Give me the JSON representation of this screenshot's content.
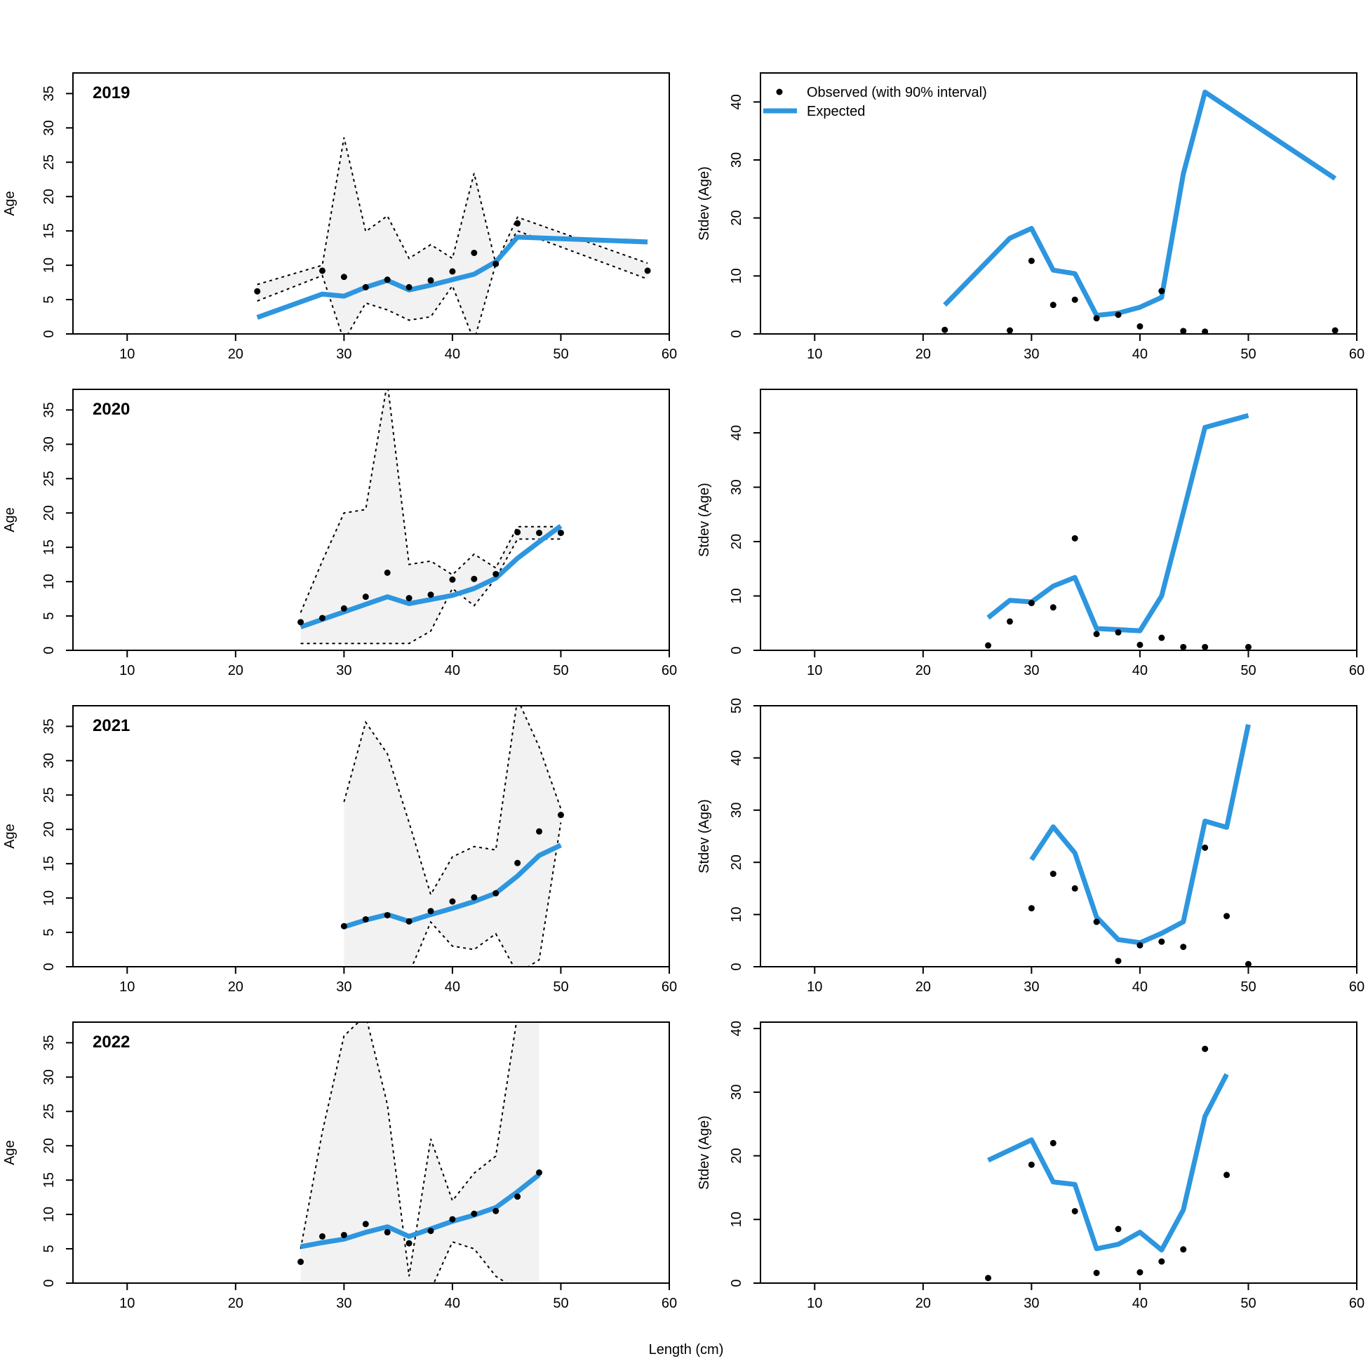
{
  "figure": {
    "xlabel": "Length (cm)",
    "legend": {
      "placement": "top-left",
      "observed_label": "Observed (with 90% interval)",
      "expected_label": "Expected"
    },
    "colors": {
      "expected": "#2D96DF",
      "observed": "#000000",
      "interval_fill": "#F2F2F2",
      "interval_line": "#000000"
    }
  },
  "chart_data": [
    {
      "type": "line",
      "panel": "mean",
      "year": "2019",
      "ylabel": "Age",
      "xlim": [
        5,
        60
      ],
      "ylim": [
        0,
        38
      ],
      "xticks": [
        10,
        20,
        30,
        40,
        50,
        60
      ],
      "yticks": [
        0,
        5,
        10,
        15,
        20,
        25,
        30,
        35
      ],
      "expected": {
        "x": [
          22,
          28,
          30,
          32,
          34,
          36,
          38,
          40,
          42,
          44,
          46,
          58
        ],
        "y": [
          2.4,
          5.8,
          5.5,
          6.8,
          7.8,
          6.4,
          7.1,
          7.9,
          8.7,
          10.5,
          14.1,
          13.4
        ]
      },
      "observed": {
        "x": [
          22,
          28,
          30,
          32,
          34,
          36,
          38,
          40,
          42,
          44,
          46,
          58
        ],
        "y": [
          6.2,
          9.2,
          8.3,
          6.8,
          7.9,
          6.8,
          7.8,
          9.1,
          11.8,
          10.2,
          16.1,
          9.2
        ]
      },
      "interval": {
        "x": [
          22,
          28,
          30,
          32,
          34,
          36,
          38,
          40,
          42,
          44,
          46,
          58
        ],
        "lower": [
          4.8,
          8.5,
          -12,
          4.5,
          3.5,
          2.0,
          2.5,
          7.0,
          -2.0,
          10.2,
          15.0,
          8.0
        ],
        "upper": [
          7.2,
          10.0,
          28.6,
          14.9,
          17.2,
          11.0,
          13.0,
          11.0,
          23.4,
          10.2,
          17.0,
          10.3
        ]
      }
    },
    {
      "type": "line",
      "panel": "stdev",
      "year": "2019",
      "ylabel": "Stdev (Age)",
      "xlim": [
        5,
        60
      ],
      "ylim": [
        0,
        45
      ],
      "xticks": [
        10,
        20,
        30,
        40,
        50,
        60
      ],
      "yticks": [
        0,
        10,
        20,
        30,
        40
      ],
      "expected": {
        "x": [
          22,
          28,
          30,
          32,
          34,
          36,
          38,
          40,
          42,
          44,
          46,
          58
        ],
        "y": [
          5.0,
          16.5,
          18.2,
          11.0,
          10.4,
          3.2,
          3.6,
          4.6,
          6.3,
          27.6,
          41.7,
          26.8
        ]
      },
      "observed": {
        "x": [
          22,
          28,
          30,
          32,
          34,
          36,
          38,
          40,
          42,
          44,
          46,
          58
        ],
        "y": [
          0.7,
          0.6,
          12.6,
          5.0,
          5.9,
          2.7,
          3.3,
          1.3,
          7.4,
          0.5,
          0.4,
          0.6
        ]
      }
    },
    {
      "type": "line",
      "panel": "mean",
      "year": "2020",
      "ylabel": "Age",
      "xlim": [
        5,
        60
      ],
      "ylim": [
        0,
        38
      ],
      "xticks": [
        10,
        20,
        30,
        40,
        50,
        60
      ],
      "yticks": [
        0,
        5,
        10,
        15,
        20,
        25,
        30,
        35
      ],
      "expected": {
        "x": [
          26,
          28,
          30,
          32,
          34,
          36,
          38,
          40,
          42,
          44,
          46,
          48,
          50
        ],
        "y": [
          3.4,
          4.5,
          5.6,
          6.7,
          7.8,
          6.8,
          7.4,
          8.0,
          9.0,
          10.5,
          13.4,
          15.8,
          18.1
        ]
      },
      "observed": {
        "x": [
          26,
          28,
          30,
          32,
          34,
          36,
          38,
          40,
          42,
          44,
          46,
          48,
          50
        ],
        "y": [
          4.1,
          4.7,
          6.1,
          7.8,
          11.3,
          7.6,
          8.1,
          10.3,
          10.4,
          11.1,
          17.2,
          17.1,
          17.1
        ]
      },
      "interval": {
        "x": [
          26,
          28,
          30,
          32,
          34,
          36,
          38,
          40,
          42,
          44,
          46,
          48,
          50
        ],
        "lower": [
          1.0,
          1.0,
          1.0,
          1.0,
          1.0,
          1.0,
          2.8,
          9.0,
          6.5,
          10.5,
          16.2,
          16.2,
          16.2
        ],
        "upper": [
          5.5,
          13.0,
          20.0,
          20.5,
          40.0,
          12.5,
          13.0,
          11.0,
          14.0,
          12.0,
          18.0,
          18.0,
          18.0
        ]
      }
    },
    {
      "type": "line",
      "panel": "stdev",
      "year": "2020",
      "ylabel": "Stdev (Age)",
      "xlim": [
        5,
        60
      ],
      "ylim": [
        0,
        48
      ],
      "xticks": [
        10,
        20,
        30,
        40,
        50,
        60
      ],
      "yticks": [
        0,
        10,
        20,
        30,
        40
      ],
      "expected": {
        "x": [
          26,
          28,
          30,
          32,
          34,
          36,
          38,
          40,
          42,
          44,
          46,
          50
        ],
        "y": [
          6.0,
          9.2,
          8.9,
          11.8,
          13.4,
          4.0,
          3.8,
          3.6,
          10.0,
          25.4,
          41.0,
          43.2
        ]
      },
      "observed": {
        "x": [
          26,
          28,
          30,
          32,
          34,
          36,
          38,
          40,
          42,
          44,
          46,
          50
        ],
        "y": [
          0.9,
          5.3,
          8.7,
          7.9,
          20.6,
          3.0,
          3.3,
          1.0,
          2.3,
          0.6,
          0.6,
          0.6
        ]
      }
    },
    {
      "type": "line",
      "panel": "mean",
      "year": "2021",
      "ylabel": "Age",
      "xlim": [
        5,
        60
      ],
      "ylim": [
        0,
        38
      ],
      "xticks": [
        10,
        20,
        30,
        40,
        50,
        60
      ],
      "yticks": [
        0,
        5,
        10,
        15,
        20,
        25,
        30,
        35
      ],
      "expected": {
        "x": [
          30,
          32,
          34,
          36,
          38,
          40,
          42,
          44,
          46,
          48,
          50
        ],
        "y": [
          5.8,
          6.8,
          7.6,
          6.6,
          7.6,
          8.5,
          9.5,
          10.7,
          13.2,
          16.2,
          17.7
        ]
      },
      "observed": {
        "x": [
          30,
          32,
          34,
          36,
          38,
          40,
          42,
          44,
          46,
          48,
          50
        ],
        "y": [
          5.9,
          6.9,
          7.5,
          6.6,
          8.1,
          9.5,
          10.1,
          10.7,
          15.1,
          19.7,
          22.1
        ]
      },
      "interval": {
        "x": [
          30,
          32,
          34,
          36,
          38,
          40,
          42,
          44,
          46,
          48,
          50
        ],
        "lower": [
          -1.0,
          -1.0,
          -1.0,
          -1.0,
          6.5,
          3.0,
          2.5,
          4.8,
          -1.0,
          1.0,
          21.0
        ],
        "upper": [
          24.0,
          35.6,
          31.0,
          21.0,
          10.5,
          16.0,
          17.5,
          17.0,
          40.0,
          32.0,
          23.0
        ]
      }
    },
    {
      "type": "line",
      "panel": "stdev",
      "year": "2021",
      "ylabel": "Stdev (Age)",
      "xlim": [
        5,
        60
      ],
      "ylim": [
        0,
        50
      ],
      "xticks": [
        10,
        20,
        30,
        40,
        50,
        60
      ],
      "yticks": [
        0,
        10,
        20,
        30,
        40,
        50
      ],
      "expected": {
        "x": [
          30,
          32,
          34,
          36,
          38,
          40,
          42,
          44,
          46,
          48,
          50
        ],
        "y": [
          20.5,
          26.8,
          21.8,
          9.5,
          5.2,
          4.6,
          6.4,
          8.6,
          27.9,
          26.7,
          46.4
        ]
      },
      "observed": {
        "x": [
          30,
          32,
          34,
          36,
          38,
          40,
          42,
          44,
          46,
          48,
          50
        ],
        "y": [
          11.2,
          17.8,
          15.0,
          8.6,
          1.1,
          4.1,
          4.8,
          3.8,
          22.8,
          9.7,
          0.5
        ]
      }
    },
    {
      "type": "line",
      "panel": "mean",
      "year": "2022",
      "ylabel": "Age",
      "xlim": [
        5,
        60
      ],
      "ylim": [
        0,
        38
      ],
      "xticks": [
        10,
        20,
        30,
        40,
        50,
        60
      ],
      "yticks": [
        0,
        5,
        10,
        15,
        20,
        25,
        30,
        35
      ],
      "expected": {
        "x": [
          26,
          28,
          30,
          32,
          34,
          36,
          38,
          40,
          42,
          44,
          46,
          48
        ],
        "y": [
          5.3,
          5.9,
          6.4,
          7.4,
          8.2,
          6.8,
          7.9,
          9.0,
          9.9,
          11.0,
          13.3,
          15.8
        ]
      },
      "observed": {
        "x": [
          26,
          28,
          30,
          32,
          34,
          36,
          38,
          40,
          42,
          44,
          46,
          48
        ],
        "y": [
          3.1,
          6.8,
          7.0,
          8.6,
          7.4,
          5.8,
          7.6,
          9.3,
          10.1,
          10.5,
          12.6,
          16.1
        ]
      },
      "interval": {
        "x": [
          26,
          28,
          30,
          32,
          34,
          36,
          38,
          40,
          42,
          44,
          46,
          48
        ],
        "lower": [
          -1.0,
          -1.0,
          -1.0,
          -1.0,
          -1.0,
          -1.0,
          -1.0,
          6.0,
          5.0,
          1.0,
          -1.0,
          -1.0
        ],
        "upper": [
          5.0,
          22.0,
          36.0,
          40.0,
          26.0,
          1.0,
          21.0,
          12.0,
          16.0,
          18.5,
          40.0,
          40.0
        ]
      }
    },
    {
      "type": "line",
      "panel": "stdev",
      "year": "2022",
      "ylabel": "Stdev (Age)",
      "xlim": [
        5,
        60
      ],
      "ylim": [
        0,
        41
      ],
      "xticks": [
        10,
        20,
        30,
        40,
        50,
        60
      ],
      "yticks": [
        0,
        10,
        20,
        30,
        40
      ],
      "expected": {
        "x": [
          26,
          30,
          32,
          34,
          36,
          38,
          40,
          42,
          44,
          46,
          48
        ],
        "y": [
          19.3,
          22.5,
          15.9,
          15.5,
          5.4,
          6.1,
          8.0,
          5.2,
          11.5,
          26.2,
          32.8
        ]
      },
      "observed": {
        "x": [
          26,
          30,
          32,
          34,
          36,
          38,
          40,
          42,
          44,
          46,
          48
        ],
        "y": [
          0.8,
          18.6,
          22.0,
          11.3,
          1.6,
          8.5,
          1.7,
          3.4,
          5.3,
          36.8,
          17.0
        ]
      }
    }
  ]
}
